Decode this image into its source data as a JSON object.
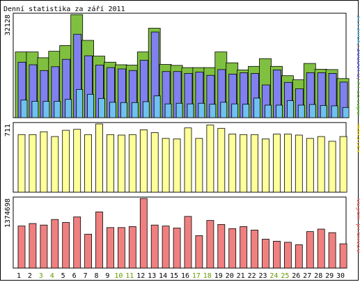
{
  "title": "Denní statistika za září 2011",
  "chart_data": {
    "type": "bar",
    "title": "Denní statistika za září 2011",
    "categories": [
      "1",
      "2",
      "3",
      "4",
      "5",
      "6",
      "7",
      "8",
      "9",
      "10",
      "11",
      "12",
      "13",
      "14",
      "15",
      "16",
      "17",
      "18",
      "19",
      "20",
      "21",
      "22",
      "23",
      "24",
      "25",
      "26",
      "27",
      "28",
      "29",
      "30"
    ],
    "weekend_days": [
      "3",
      "4",
      "10",
      "11",
      "17",
      "18",
      "24",
      "25"
    ],
    "panels": [
      {
        "id": "hits",
        "ymax_label": "32128",
        "ymax": 32128,
        "legend": [
          "Stránek",
          "/",
          "Souborů",
          "/",
          "Přístupů"
        ],
        "legend_colors": [
          "#66ccff",
          "#808080",
          "#6666ff",
          "#808080",
          "#66cc33"
        ],
        "series": [
          {
            "name": "Přístupů",
            "color": "#80c040",
            "values": [
              20500,
              20500,
              18700,
              20700,
              22500,
              32128,
              24100,
              19200,
              17300,
              16500,
              16400,
              20500,
              27900,
              16600,
              16300,
              15600,
              15600,
              15600,
              20500,
              17100,
              14900,
              16000,
              18400,
              16000,
              13100,
              11800,
              16900,
              15100,
              15000,
              12200
            ]
          },
          {
            "name": "Souborů",
            "color": "#8080f0",
            "values": [
              17300,
              16500,
              14700,
              15900,
              18200,
              26000,
              19300,
              16400,
              15600,
              15200,
              14700,
              17900,
              26700,
              14400,
              14400,
              13800,
              14200,
              13200,
              15000,
              13600,
              14000,
              13800,
              10200,
              14900,
              11000,
              9000,
              14000,
              14000,
              13800,
              11100
            ]
          },
          {
            "name": "Stránek",
            "color": "#70c0f0",
            "values": [
              5500,
              5100,
              5100,
              5100,
              5700,
              8800,
              7300,
              6000,
              4800,
              4700,
              4700,
              5000,
              6800,
              4300,
              4500,
              4300,
              4500,
              4200,
              4800,
              4300,
              4200,
              6100,
              3900,
              3900,
              5300,
              3900,
              4100,
              3800,
              3700,
              3200
            ]
          }
        ]
      },
      {
        "id": "visits",
        "ymax_label": "711",
        "ymax": 711,
        "legend": [
          "Návštěv"
        ],
        "legend_colors": [
          "#ffd700"
        ],
        "series": [
          {
            "name": "Návštěv",
            "color": "#ffff99",
            "values": [
              600,
              600,
              630,
              580,
              645,
              655,
              600,
              711,
              600,
              595,
              600,
              650,
              620,
              560,
              555,
              670,
              560,
              700,
              665,
              605,
              600,
              600,
              555,
              605,
              605,
              595,
              560,
              580,
              530,
              580
            ]
          }
        ]
      },
      {
        "id": "traffic",
        "ymax_label": "1374698",
        "ymax": 1374698,
        "legend": [
          "Objem přenosu"
        ],
        "legend_colors": [
          "#ff6666"
        ],
        "series": [
          {
            "name": "Objem přenosu",
            "color": "#f08080",
            "values": [
              830000,
              880000,
              850000,
              960000,
              900000,
              1010000,
              670000,
              1110000,
              800000,
              800000,
              820000,
              1374698,
              850000,
              830000,
              790000,
              1020000,
              640000,
              940000,
              860000,
              780000,
              820000,
              750000,
              570000,
              530000,
              510000,
              460000,
              720000,
              770000,
              700000,
              480000
            ]
          }
        ]
      }
    ]
  }
}
